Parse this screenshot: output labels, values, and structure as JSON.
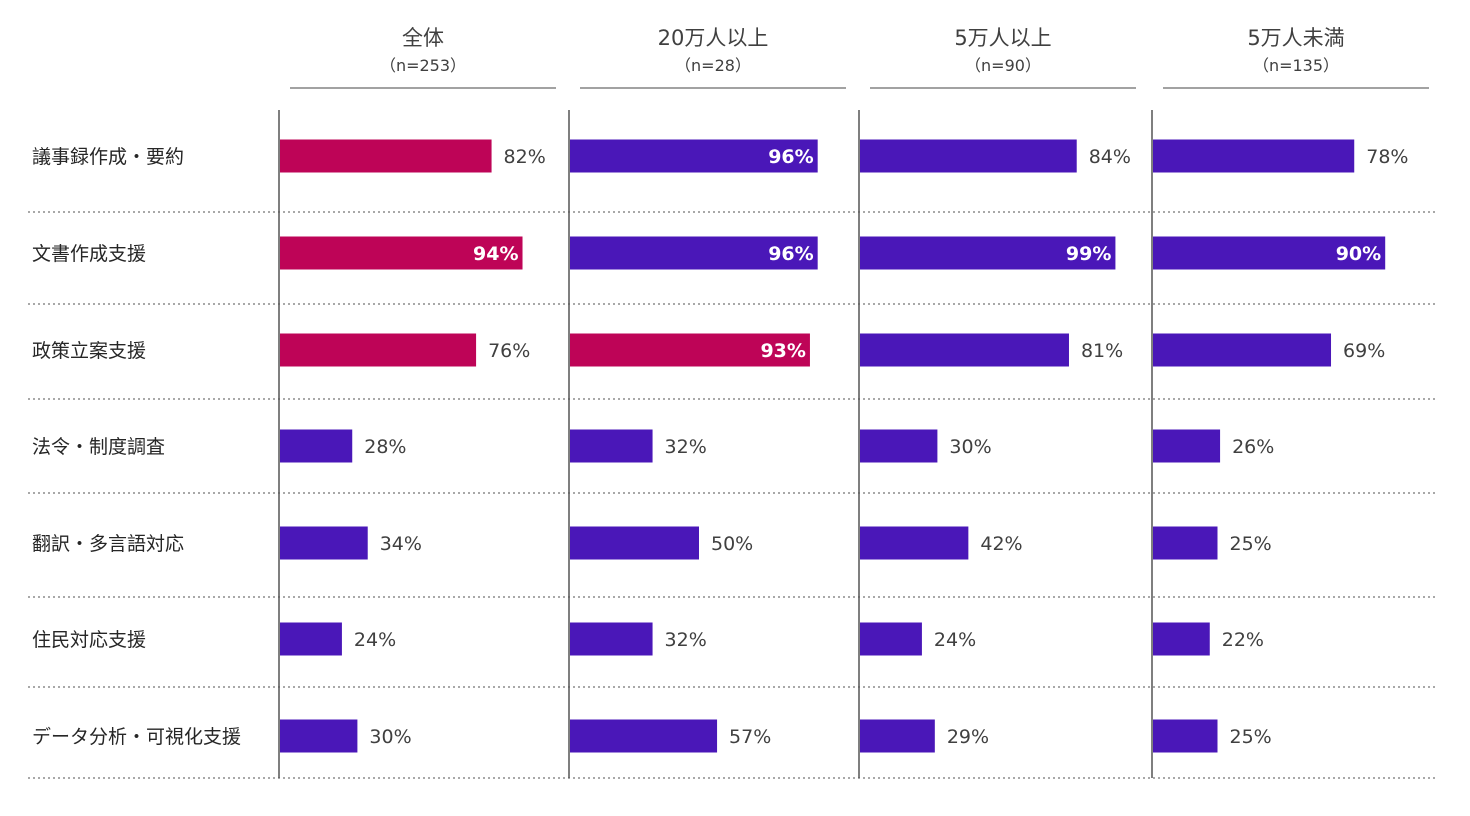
{
  "chart_data": {
    "type": "bar",
    "orientation": "horizontal",
    "xlim": [
      0,
      100
    ],
    "unit": "%",
    "grid": false,
    "categories": [
      "議事録作成・要約",
      "文書作成支援",
      "政策立案支援",
      "法令・制度調査",
      "翻訳・多言語対応",
      "住民対応支援",
      "データ分析・可視化支援"
    ],
    "series": [
      {
        "name": "全体",
        "n_label": "（n=253）",
        "values": [
          82,
          94,
          76,
          28,
          34,
          24,
          30
        ],
        "value_labels": [
          "82%",
          "94%",
          "76%",
          "28%",
          "34%",
          "24%",
          "30%"
        ]
      },
      {
        "name": "20万人以上",
        "n_label": "（n=28）",
        "values": [
          96,
          96,
          93,
          32,
          50,
          32,
          57
        ],
        "value_labels": [
          "96%",
          "96%",
          "93%",
          "32%",
          "50%",
          "32%",
          "57%"
        ]
      },
      {
        "name": "5万人以上",
        "n_label": "（n=90）",
        "values": [
          84,
          99,
          81,
          30,
          42,
          24,
          29
        ],
        "value_labels": [
          "84%",
          "99%",
          "81%",
          "30%",
          "42%",
          "24%",
          "29%"
        ]
      },
      {
        "name": "5万人未満",
        "n_label": "（n=135）",
        "values": [
          78,
          90,
          69,
          26,
          25,
          22,
          25
        ],
        "value_labels": [
          "78%",
          "90%",
          "69%",
          "26%",
          "25%",
          "22%",
          "25%"
        ]
      }
    ],
    "highlighted": [
      [
        0,
        0
      ],
      [
        0,
        1
      ],
      [
        0,
        2
      ],
      [
        1,
        2
      ]
    ],
    "colors": {
      "bar": "#4a17b8",
      "highlight": "#be0457",
      "axis": "#555555",
      "separator": "#8c8c8c"
    }
  }
}
